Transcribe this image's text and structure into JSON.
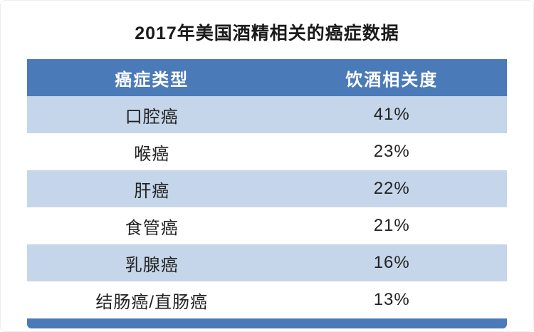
{
  "title": "2017年美国酒精相关的癌症数据",
  "colors": {
    "header_blue": "#4a7ab8",
    "row_light_blue": "#c6d6ea",
    "row_white": "#ffffff",
    "title_color": "#1a1a1a",
    "cell_text": "#222222"
  },
  "table": {
    "headers": {
      "type": "癌症类型",
      "relevance": "饮酒相关度"
    },
    "rows": [
      {
        "type": "口腔癌",
        "relevance": "41%"
      },
      {
        "type": "喉癌",
        "relevance": "23%"
      },
      {
        "type": "肝癌",
        "relevance": "22%"
      },
      {
        "type": "食管癌",
        "relevance": "21%"
      },
      {
        "type": "乳腺癌",
        "relevance": "16%"
      },
      {
        "type": "结肠癌/直肠癌",
        "relevance": "13%"
      }
    ]
  },
  "chart_data": {
    "type": "table",
    "title": "2017年美国酒精相关的癌症数据",
    "columns": [
      "癌症类型",
      "饮酒相关度"
    ],
    "categories": [
      "口腔癌",
      "喉癌",
      "肝癌",
      "食管癌",
      "乳腺癌",
      "结肠癌/直肠癌"
    ],
    "values": [
      41,
      23,
      22,
      21,
      16,
      13
    ],
    "value_unit": "%",
    "layout": {
      "header_position": "top",
      "alternating_rows": true
    }
  }
}
